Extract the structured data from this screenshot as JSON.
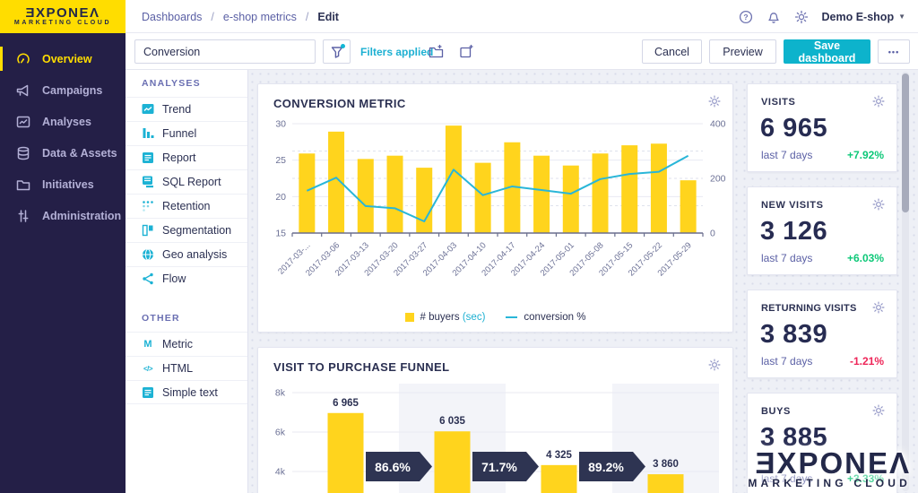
{
  "header": {
    "logo": {
      "brand": "ƎXPONEΛ",
      "sub": "MARKETING CLOUD"
    },
    "breadcrumb": {
      "items": [
        "Dashboards",
        "e-shop metrics",
        "Edit"
      ],
      "separator": "/"
    },
    "icons": [
      "help-icon",
      "notifications-icon",
      "settings-icon"
    ],
    "account": "Demo E-shop"
  },
  "toolbar": {
    "dashboard_name": "Conversion",
    "filters_label": "Filters applied",
    "cancel_label": "Cancel",
    "preview_label": "Preview",
    "save_label": "Save dashboard",
    "more_label": "•••",
    "accent_color": "#0db3cc"
  },
  "sidebar": {
    "items": [
      {
        "label": "Overview",
        "icon": "gauge-icon",
        "active": true
      },
      {
        "label": "Campaigns",
        "icon": "megaphone-icon",
        "active": false
      },
      {
        "label": "Analyses",
        "icon": "chart-icon",
        "active": false
      },
      {
        "label": "Data & Assets",
        "icon": "database-icon",
        "active": false
      },
      {
        "label": "Initiatives",
        "icon": "folder-icon",
        "active": false
      },
      {
        "label": "Administration",
        "icon": "sliders-icon",
        "active": false
      }
    ],
    "active_color": "#ffdd00",
    "bg_color": "#241f47"
  },
  "panel": {
    "sections": [
      {
        "title": "ANALYSES",
        "items": [
          {
            "label": "Trend",
            "icon": "trend-icon"
          },
          {
            "label": "Funnel",
            "icon": "funnel-bars-icon"
          },
          {
            "label": "Report",
            "icon": "report-icon"
          },
          {
            "label": "SQL Report",
            "icon": "sql-report-icon"
          },
          {
            "label": "Retention",
            "icon": "retention-icon"
          },
          {
            "label": "Segmentation",
            "icon": "segmentation-icon"
          },
          {
            "label": "Geo analysis",
            "icon": "globe-icon"
          },
          {
            "label": "Flow",
            "icon": "flow-icon"
          }
        ]
      },
      {
        "title": "OTHER",
        "items": [
          {
            "label": "Metric",
            "icon": "metric-icon",
            "glyph": "M"
          },
          {
            "label": "HTML",
            "icon": "html-icon",
            "glyph": "</>"
          },
          {
            "label": "Simple text",
            "icon": "simple-text-icon"
          }
        ]
      }
    ]
  },
  "chart_data": [
    {
      "type": "bar",
      "title": "CONVERSION METRIC",
      "categories": [
        "2017-03-...",
        "2017-03-06",
        "2017-03-13",
        "2017-03-20",
        "2017-03-27",
        "2017-04-03",
        "2017-04-10",
        "2017-04-17",
        "2017-04-24",
        "2017-05-01",
        "2017-05-08",
        "2017-05-15",
        "2017-05-22",
        "2017-05-29"
      ],
      "series": [
        {
          "name": "# buyers",
          "unit": "(sec)",
          "type": "bar",
          "axis": "right",
          "color": "#ffd41d",
          "values": [
            291,
            371,
            271,
            283,
            239,
            393,
            257,
            332,
            283,
            247,
            291,
            321,
            327,
            193
          ]
        },
        {
          "name": "conversion %",
          "type": "line",
          "axis": "left",
          "color": "#29b6d8",
          "values": [
            20.8,
            22.6,
            18.7,
            18.4,
            16.6,
            23.7,
            20.2,
            21.4,
            20.9,
            20.4,
            22.4,
            23.1,
            23.4,
            25.6
          ]
        }
      ],
      "left_axis": {
        "min": 15,
        "max": 30,
        "ticks": [
          30,
          25,
          20,
          15
        ]
      },
      "right_axis": {
        "min": 0,
        "max": 400,
        "ticks": [
          400,
          200,
          0
        ],
        "dashed_gridlines": [
          300,
          200,
          100
        ]
      },
      "legend_position": "bottom",
      "grid": true
    },
    {
      "type": "funnel",
      "title": "VISIT TO PURCHASE FUNNEL",
      "steps": [
        {
          "label": "6 965",
          "value": 6965
        },
        {
          "label": "6 035",
          "value": 6035
        },
        {
          "label": "4 325",
          "value": 4325
        },
        {
          "label": "3 860",
          "value": 3860
        }
      ],
      "conversion_rates": [
        "86.6%",
        "71.7%",
        "89.2%"
      ],
      "y_ticks": [
        {
          "label": "8k",
          "value": 8000
        },
        {
          "label": "6k",
          "value": 6000
        },
        {
          "label": "4k",
          "value": 4000
        }
      ],
      "ylim_top": 8000,
      "bar_color": "#ffd41d",
      "badge_color": "#2e3452",
      "stripe_color": "#f3f4f9"
    }
  ],
  "metric_cards": [
    {
      "title": "VISITS",
      "value": "6 965",
      "period": "last 7 days",
      "delta": "+7.92%",
      "delta_color": "#0dc878"
    },
    {
      "title": "NEW VISITS",
      "value": "3 126",
      "period": "last 7 days",
      "delta": "+6.03%",
      "delta_color": "#0dc878"
    },
    {
      "title": "RETURNING VISITS",
      "value": "3 839",
      "period": "last 7 days",
      "delta": "-1.21%",
      "delta_color": "#ee2558"
    },
    {
      "title": "BUYS",
      "value": "3 885",
      "period": "last 7 days",
      "delta": "+3.33%",
      "delta_color": "#0dc878"
    }
  ],
  "watermark": {
    "brand": "ƎXPONEΛ",
    "sub": "MARKETING CLOUD"
  }
}
